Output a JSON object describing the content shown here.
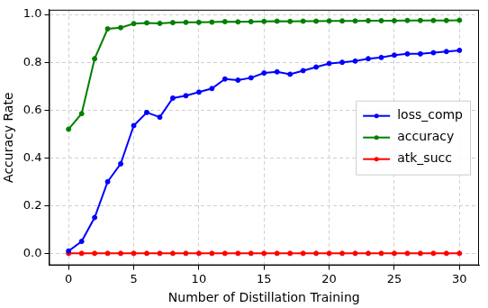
{
  "chart_data": {
    "type": "line",
    "x_label": "Number of Distillation Training",
    "y_label": "Accuracy Rate",
    "x": [
      0,
      1,
      2,
      3,
      4,
      5,
      6,
      7,
      8,
      9,
      10,
      11,
      12,
      13,
      14,
      15,
      16,
      17,
      18,
      19,
      20,
      21,
      22,
      23,
      24,
      25,
      26,
      27,
      28,
      29,
      30
    ],
    "series": [
      {
        "name": "loss_comp",
        "color": "#0000ff",
        "marker": "o",
        "line_style": "solid",
        "values": [
          0.01,
          0.05,
          0.15,
          0.3,
          0.375,
          0.535,
          0.59,
          0.57,
          0.65,
          0.66,
          0.675,
          0.69,
          0.73,
          0.725,
          0.735,
          0.755,
          0.76,
          0.75,
          0.765,
          0.78,
          0.795,
          0.8,
          0.805,
          0.815,
          0.82,
          0.83,
          0.835,
          0.835,
          0.84,
          0.845,
          0.85
        ]
      },
      {
        "name": "accuracy",
        "color": "#008000",
        "marker": "o",
        "line_style": "solid",
        "values": [
          0.52,
          0.585,
          0.815,
          0.94,
          0.945,
          0.962,
          0.965,
          0.963,
          0.966,
          0.967,
          0.967,
          0.968,
          0.97,
          0.969,
          0.97,
          0.971,
          0.972,
          0.971,
          0.972,
          0.972,
          0.973,
          0.973,
          0.973,
          0.974,
          0.974,
          0.974,
          0.975,
          0.975,
          0.975,
          0.975,
          0.976
        ]
      },
      {
        "name": "atk_succ",
        "color": "#ff0000",
        "marker": "o",
        "line_style": "solid",
        "values": [
          0,
          0,
          0,
          0,
          0,
          0,
          0,
          0,
          0,
          0,
          0,
          0,
          0,
          0,
          0,
          0,
          0,
          0,
          0,
          0,
          0,
          0,
          0,
          0,
          0,
          0,
          0,
          0,
          0,
          0,
          0
        ]
      }
    ],
    "xlim": [
      -1.5,
      31.5
    ],
    "xticks": [
      0,
      5,
      10,
      15,
      20,
      25,
      30
    ],
    "ylim": [
      -0.05,
      1.02
    ],
    "yticks": [
      {
        "value": 0,
        "label": "0.0"
      },
      0.2,
      0.4,
      0.6,
      0.8,
      {
        "value": 1,
        "label": "1.0"
      }
    ],
    "grid": true,
    "legend": "right"
  }
}
